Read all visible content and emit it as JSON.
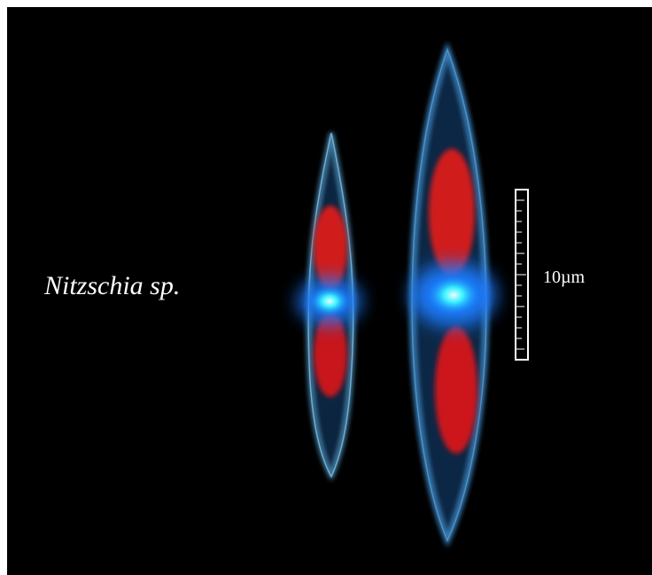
{
  "image": {
    "species_label": "Nitzschia sp.",
    "scale_bar_label": "10µm",
    "colors": {
      "background": "#000000",
      "cell_wall": "#5aa7d8",
      "chloroplast": "#d11a1a",
      "nucleus": "#22e6ff",
      "text": "#ffffff"
    }
  }
}
